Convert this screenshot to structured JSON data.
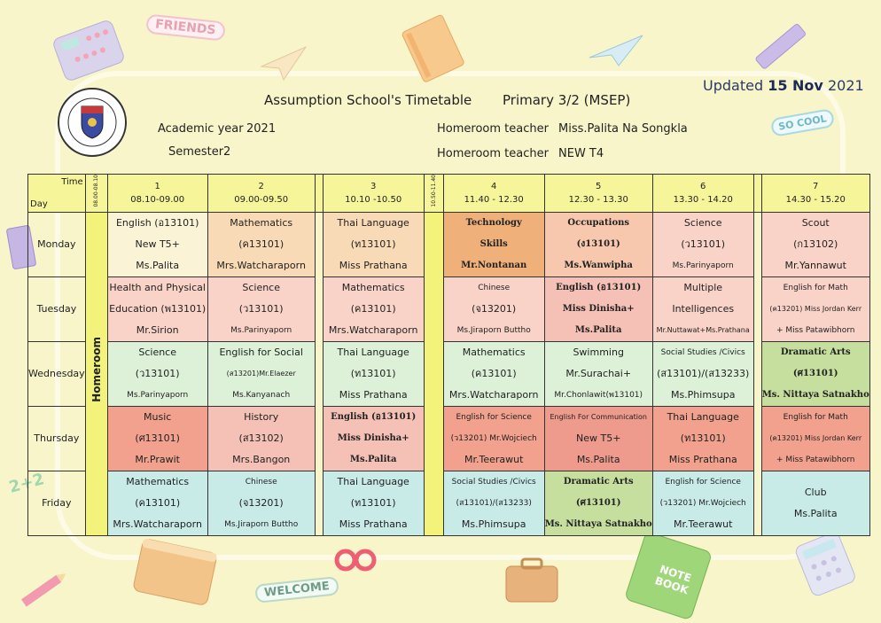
{
  "header": {
    "title": "Assumption School's Timetable",
    "class": "Primary  3/2 (MSEP)",
    "academic_year_label": "Academic year",
    "academic_year": "2021",
    "semester_label": "Semester",
    "semester": "2",
    "homeroom_label": "Homeroom teacher",
    "homeroom_teacher_1": "Miss.Palita Na Songkla",
    "homeroom_teacher_2": "NEW T4",
    "updated_label": "Updated",
    "updated_date": "15 Nov",
    "updated_year": "2021"
  },
  "logo": {
    "text_top": "ASSUMPTION COLLEGE CHACHOENGSAO",
    "text_bottom": "BAIKRUTCHATHANI - THAILAND"
  },
  "decor": {
    "friends": "FRIENDS",
    "so_cool": "SO COOL",
    "welcome": "WELCOME",
    "note_book": "NOTE BOOK",
    "numbers": "2+2"
  },
  "table": {
    "time_label": "Time",
    "day_label": "Day",
    "homeroom_time": "08.00-08.10",
    "homeroom_label": "Homeroom",
    "break_time": "10.50-11.40",
    "periods": [
      {
        "num": "1",
        "time": "08.10-09.00"
      },
      {
        "num": "2",
        "time": "09.00-09.50"
      },
      {
        "num": "3",
        "time": "10.10 -10.50"
      },
      {
        "num": "4",
        "time": "11.40  -  12.30"
      },
      {
        "num": "5",
        "time": "12.30  -  13.30"
      },
      {
        "num": "6",
        "time": "13.30 - 14.20"
      },
      {
        "num": "7",
        "time": "14.30 - 15.20"
      }
    ],
    "days": [
      {
        "name": "Monday",
        "cells": [
          [
            "English (อ13101)",
            "New T5+",
            "Ms.Palita"
          ],
          [
            "Mathematics",
            "(ค13101)",
            "Mrs.Watcharaporn"
          ],
          [
            "Thai Language",
            "(ท13101)",
            "Miss Prathana"
          ],
          [
            "Technology",
            "Skills",
            "Mr.Nontanan"
          ],
          [
            "Occupations",
            "(ง13101)",
            "Ms.Wanwipha"
          ],
          [
            "Science",
            "(ว13101)",
            "Ms.Parinyaporn"
          ],
          [
            "Scout",
            "(ก13102)",
            "Mr.Yannawut"
          ]
        ]
      },
      {
        "name": "Tuesday",
        "cells": [
          [
            "Health and Physical",
            "Education (พ13101)",
            "Mr.Sirion"
          ],
          [
            "Science",
            "(ว13101)",
            "Ms.Parinyaporn"
          ],
          [
            "Mathematics",
            "(ค13101)",
            "Mrs.Watcharaporn"
          ],
          [
            "Chinese",
            "(จ13201)",
            "Ms.Jiraporn  Buttho"
          ],
          [
            "English (อ13101)",
            "Miss Dinisha+",
            "Ms.Palita"
          ],
          [
            "Multiple",
            "Intelligences",
            "Mr.Nuttawat+Ms.Prathana"
          ],
          [
            "English for Math",
            "(ค13201)  Miss Jordan  Kerr",
            "+ Miss Patawibhorn"
          ]
        ]
      },
      {
        "name": "Wednesday",
        "cells": [
          [
            "Science",
            "(ว13101)",
            "Ms.Parinyaporn"
          ],
          [
            "English for Social",
            "(ส13201)Mr.Elaezer",
            "Ms.Kanyanach"
          ],
          [
            "Thai Language",
            "(ท13101)",
            "Miss Prathana"
          ],
          [
            "Mathematics",
            "(ค13101)",
            "Mrs.Watcharaporn"
          ],
          [
            "Swimming",
            "Mr.Surachai+",
            "Mr.Chonlawit(พ13101)"
          ],
          [
            "Social Studies /Civics",
            "(ส13101)/(ส13233)",
            "Ms.Phimsupa"
          ],
          [
            "Dramatic  Arts",
            "(ศ13101)",
            "Ms.  Nittaya  Satnakho"
          ]
        ]
      },
      {
        "name": "Thursday",
        "cells": [
          [
            "Music",
            "(ศ13101)",
            "Mr.Prawit"
          ],
          [
            "History",
            "(ส13102)",
            "Mrs.Bangon"
          ],
          [
            "English (อ13101)",
            "Miss Dinisha+",
            "Ms.Palita"
          ],
          [
            "English for  Science",
            "(ว13201) Mr.Wojciech",
            "Mr.Teerawut"
          ],
          [
            "English For Communication",
            "New T5+",
            "Ms.Palita"
          ],
          [
            "Thai Language",
            "(ท13101)",
            "Miss Prathana"
          ],
          [
            "English for Math",
            "(ค13201)  Miss Jordan  Kerr",
            "+ Miss Patawibhorn"
          ]
        ]
      },
      {
        "name": "Friday",
        "cells": [
          [
            "Mathematics",
            "(ค13101)",
            "Mrs.Watcharaporn"
          ],
          [
            "Chinese",
            "(จ13201)",
            "Ms.Jiraporn  Buttho"
          ],
          [
            "Thai Language",
            "(ท13101)",
            "Miss Prathana"
          ],
          [
            "Social Studies /Civics",
            "(ส13101)/(ส13233)",
            "Ms.Phimsupa"
          ],
          [
            "Dramatic  Arts",
            "(ศ13101)",
            "Ms.  Nittaya  Satnakho"
          ],
          [
            "English for  Science",
            "(ว13201) Mr.Wojciech",
            "Mr.Teerawut"
          ],
          [
            "Club",
            "Ms.Palita",
            ""
          ]
        ]
      }
    ]
  },
  "colors": {
    "background": "#f7f5c9",
    "header_yellow": "#f6f59a",
    "homeroom_yellow": "#f3f27a"
  }
}
